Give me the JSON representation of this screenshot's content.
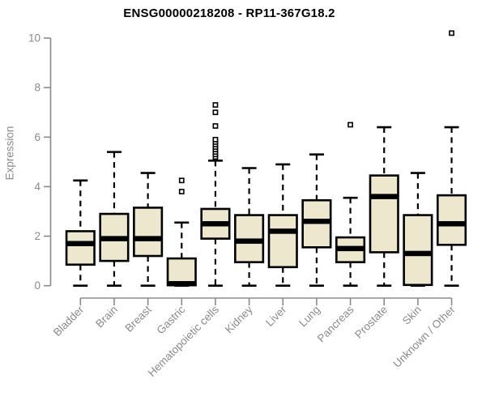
{
  "page": {
    "title": "ENSG00000218208 - RP11-367G18.2"
  },
  "chart_data": {
    "type": "boxplot",
    "title": "ENSG00000218208 - RP11-367G18.2",
    "subtitle": "",
    "xlabel": "",
    "ylabel": "Expression",
    "ylim": [
      0,
      10
    ],
    "yticks": [
      0,
      2,
      4,
      6,
      8,
      10
    ],
    "grid": false,
    "legend": "none",
    "x_tick_label_rotation_deg": 45,
    "colors": {
      "box_fill": "#EDE8CD",
      "box_border": "#000000",
      "median": "#000000",
      "whisker": "#000000",
      "outlier_stroke": "#000000",
      "outlier_fill": "#ffffff",
      "axis": "#8a8a8a",
      "tick_label": "#8a8a8a",
      "title": "#000000",
      "background": "#ffffff"
    },
    "categories": [
      "Bladder",
      "Brain",
      "Breast",
      "Gastric",
      "Hematopoietic cells",
      "Kidney",
      "Liver",
      "Lung",
      "Pancreas",
      "Prostate",
      "Skin",
      "Unknown / Other"
    ],
    "boxes": [
      {
        "category": "Bladder",
        "low": 0,
        "q1": 0.85,
        "median": 1.7,
        "q3": 2.2,
        "high": 4.25,
        "outliers": []
      },
      {
        "category": "Brain",
        "low": 0,
        "q1": 1.0,
        "median": 1.9,
        "q3": 2.9,
        "high": 5.4,
        "outliers": []
      },
      {
        "category": "Breast",
        "low": 0,
        "q1": 1.2,
        "median": 1.9,
        "q3": 3.15,
        "high": 4.55,
        "outliers": []
      },
      {
        "category": "Gastric",
        "low": 0,
        "q1": 0.02,
        "median": 0.08,
        "q3": 1.1,
        "high": 2.55,
        "outliers": [
          3.8,
          4.25
        ]
      },
      {
        "category": "Hematopoietic cells",
        "low": 0,
        "q1": 1.9,
        "median": 2.5,
        "q3": 3.1,
        "high": 5.05,
        "outliers": [
          5.2,
          5.3,
          5.4,
          5.5,
          5.6,
          5.7,
          5.8,
          5.9,
          6.45,
          7.0,
          7.3
        ]
      },
      {
        "category": "Kidney",
        "low": 0,
        "q1": 0.95,
        "median": 1.8,
        "q3": 2.85,
        "high": 4.75,
        "outliers": []
      },
      {
        "category": "Liver",
        "low": 0,
        "q1": 0.75,
        "median": 2.2,
        "q3": 2.85,
        "high": 4.9,
        "outliers": []
      },
      {
        "category": "Lung",
        "low": 0,
        "q1": 1.55,
        "median": 2.6,
        "q3": 3.45,
        "high": 5.3,
        "outliers": []
      },
      {
        "category": "Pancreas",
        "low": 0,
        "q1": 0.95,
        "median": 1.5,
        "q3": 1.95,
        "high": 3.55,
        "outliers": [
          6.5
        ]
      },
      {
        "category": "Prostate",
        "low": 0,
        "q1": 1.35,
        "median": 3.6,
        "q3": 4.45,
        "high": 6.4,
        "outliers": []
      },
      {
        "category": "Skin",
        "low": 0,
        "q1": 0.03,
        "median": 1.3,
        "q3": 2.85,
        "high": 4.55,
        "outliers": []
      },
      {
        "category": "Unknown / Other",
        "low": 0,
        "q1": 1.65,
        "median": 2.5,
        "q3": 3.65,
        "high": 6.4,
        "outliers": [
          10.2
        ]
      }
    ]
  }
}
